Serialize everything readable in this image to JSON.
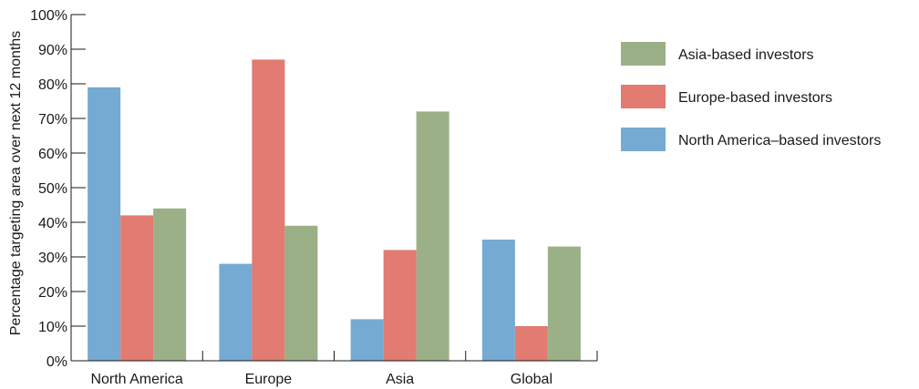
{
  "chart_data": {
    "type": "bar",
    "title": "",
    "xlabel": "",
    "ylabel": "Percentage targeting area over next 12 months",
    "ylim": [
      0,
      100
    ],
    "yticks": [
      0,
      10,
      20,
      30,
      40,
      50,
      60,
      70,
      80,
      90,
      100
    ],
    "ytick_labels": [
      "0%",
      "10%",
      "20%",
      "30%",
      "40%",
      "50%",
      "60%",
      "70%",
      "80%",
      "90%",
      "100%"
    ],
    "categories": [
      "North America",
      "Europe",
      "Asia",
      "Global"
    ],
    "series": [
      {
        "name": "North America–based investors",
        "color": "#75aad3",
        "values": [
          79,
          28,
          12,
          35
        ]
      },
      {
        "name": "Europe-based investors",
        "color": "#e27b72",
        "values": [
          42,
          87,
          32,
          10
        ]
      },
      {
        "name": "Asia-based investors",
        "color": "#9bb087",
        "values": [
          44,
          39,
          72,
          33
        ]
      }
    ],
    "legend": {
      "placement": "right",
      "order": [
        "Asia-based investors",
        "Europe-based investors",
        "North America–based investors"
      ]
    },
    "grid": false
  }
}
